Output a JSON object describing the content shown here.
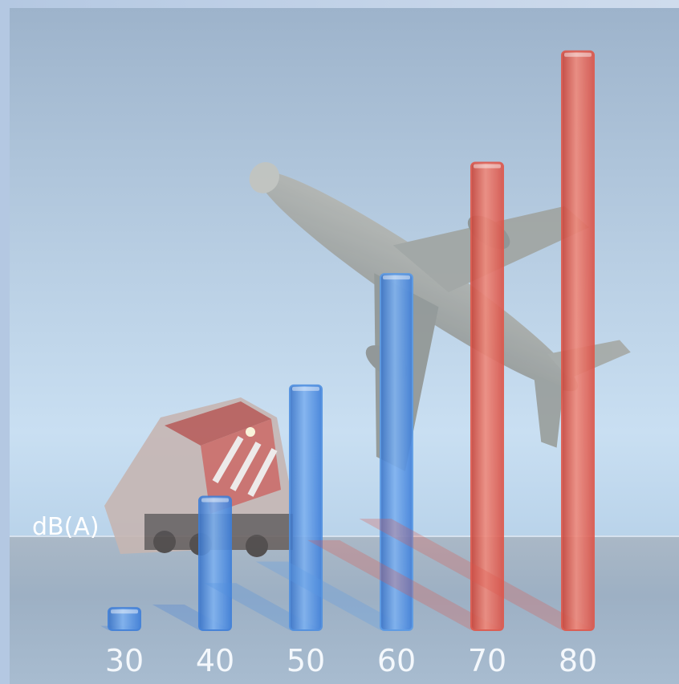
{
  "chart_data": {
    "type": "bar",
    "categories": [
      "30",
      "40",
      "50",
      "60",
      "70",
      "80"
    ],
    "values": [
      30,
      40,
      50,
      60,
      70,
      80
    ],
    "series": [
      {
        "values": [
          30,
          40,
          50,
          60,
          70,
          80
        ]
      }
    ],
    "bar_colors": [
      "#3f7fd9",
      "#3f7fd9",
      "#4f8fe0",
      "#5a9ae6",
      "#e0574a",
      "#e0574a"
    ],
    "ylabel": "dB(A)",
    "ylim": [
      28,
      82
    ],
    "grid": false,
    "legend": "none",
    "illustrations": [
      "train-illustration",
      "airplane-illustration"
    ]
  }
}
